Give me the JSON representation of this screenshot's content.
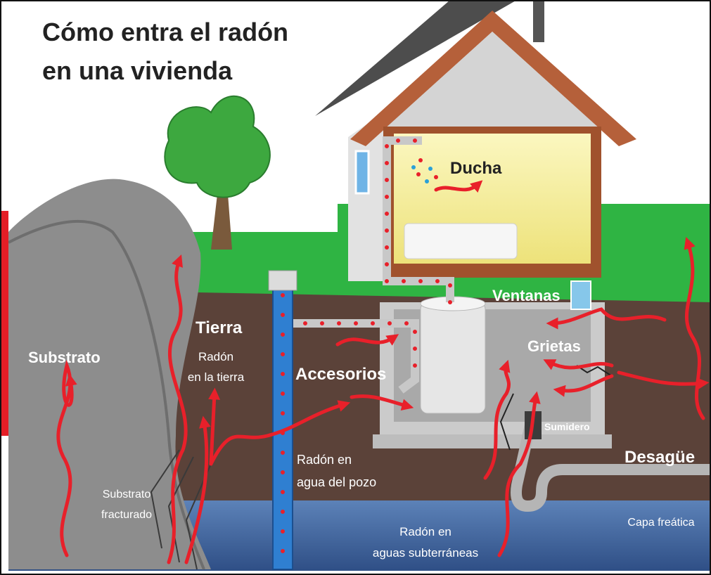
{
  "title": [
    "Cómo entra el radón",
    "en una vivienda"
  ],
  "labels": {
    "shower": "Ducha",
    "windows": "Ventanas",
    "cracks": "Grietas",
    "soil": [
      "Tierra",
      "Radón",
      "en la tierra"
    ],
    "substrate": "Substrato",
    "fittings": "Accesorios",
    "sump": "Sumidero",
    "drain": "Desagüe",
    "well_water": [
      "Radón en",
      "agua del pozo"
    ],
    "fractured_substrate": [
      "Substrato",
      "fracturado"
    ],
    "groundwater": [
      "Radón en",
      "aguas subterráneas"
    ],
    "water_table": "Capa freática"
  }
}
